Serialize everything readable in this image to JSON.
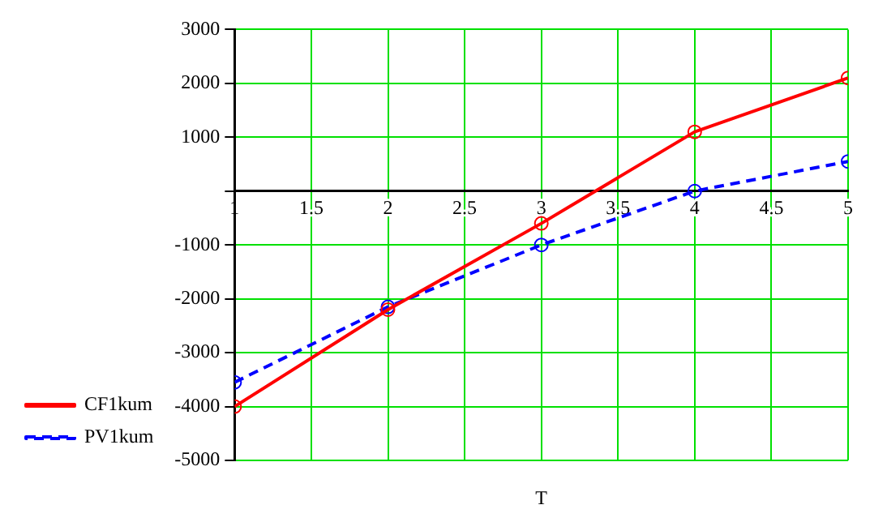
{
  "chart_data": {
    "type": "line",
    "xlabel": "T",
    "x": [
      1,
      2,
      3,
      4,
      5
    ],
    "series": [
      {
        "name": "CF1kum",
        "color": "#ff0000",
        "values": [
          -4000,
          -2200,
          -600,
          1100,
          2100
        ],
        "line_style": "solid"
      },
      {
        "name": "PV1kum",
        "color": "#0000ff",
        "values": [
          -3550,
          -2150,
          -1000,
          0,
          550
        ],
        "line_style": "dashed"
      }
    ],
    "xlim": [
      1,
      5
    ],
    "xticks": [
      1,
      1.5,
      2,
      2.5,
      3,
      3.5,
      4,
      4.5,
      5
    ],
    "ylim": [
      -5000,
      3000
    ],
    "yticks": [
      -5000,
      -4000,
      -3000,
      -2000,
      -1000,
      {
        "value": 0,
        "label": null
      },
      1000,
      2000,
      3000
    ],
    "grid": true,
    "legend": "left",
    "marker": "circle"
  }
}
